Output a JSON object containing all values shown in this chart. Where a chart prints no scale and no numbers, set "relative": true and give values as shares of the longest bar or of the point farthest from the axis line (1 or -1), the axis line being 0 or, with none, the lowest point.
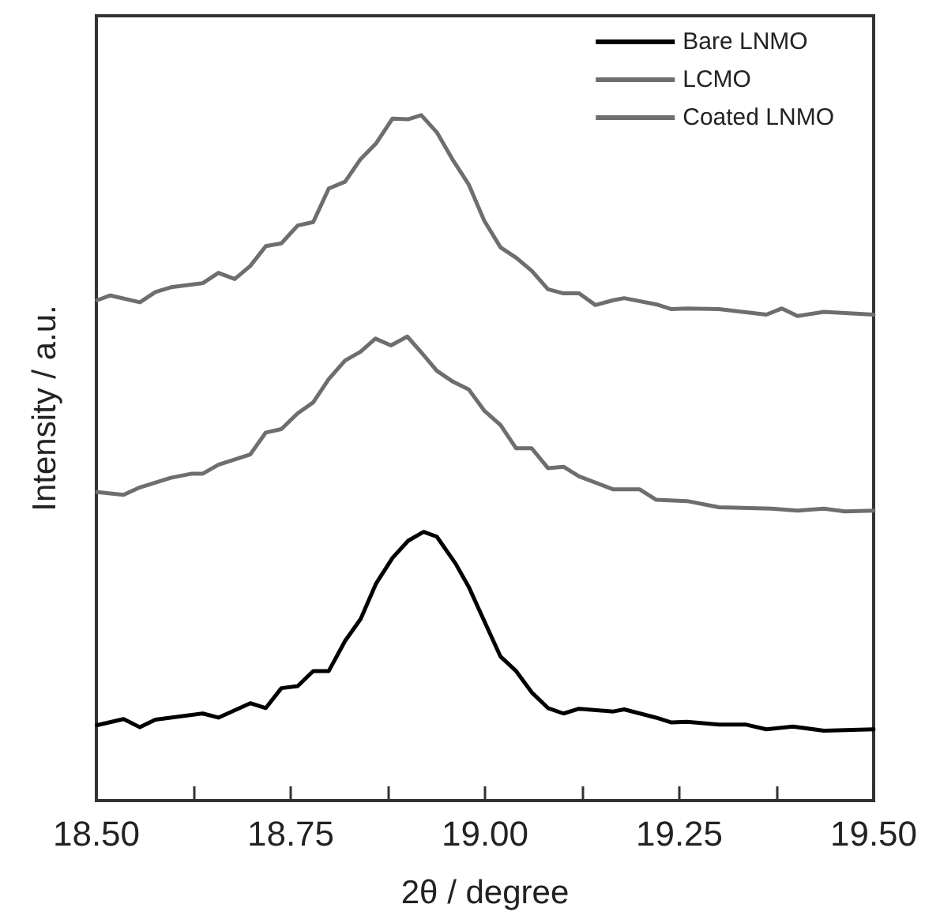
{
  "chart_data": {
    "type": "line",
    "relative": true,
    "xlabel": "2θ / degree",
    "ylabel": "Intensity / a.u.",
    "xlim": [
      18.5,
      19.5
    ],
    "xticks": [
      {
        "value": 18.5,
        "label": "18.50"
      },
      {
        "value": 18.625,
        "label": null
      },
      {
        "value": 18.75,
        "label": "18.75"
      },
      {
        "value": 18.875,
        "label": null
      },
      {
        "value": 19.0,
        "label": "19.00"
      },
      {
        "value": 19.125,
        "label": null
      },
      {
        "value": 19.25,
        "label": "19.25"
      },
      {
        "value": 19.375,
        "label": null
      },
      {
        "value": 19.5,
        "label": "19.50"
      }
    ],
    "tick_labels": "x",
    "grid": false,
    "legend": "top right",
    "marker": "none",
    "line_style": "solid",
    "series": [
      {
        "name": "Bare LNMO",
        "color": "#000000",
        "x": [
          18.501,
          18.535,
          18.556,
          18.576,
          18.637,
          18.657,
          18.698,
          18.718,
          18.738,
          18.759,
          18.779,
          18.799,
          18.82,
          18.84,
          18.86,
          18.881,
          18.901,
          18.921,
          18.938,
          18.962,
          18.979,
          18.999,
          19.02,
          19.04,
          19.06,
          19.081,
          19.101,
          19.121,
          19.165,
          19.179,
          19.22,
          19.24,
          19.26,
          19.301,
          19.335,
          19.362,
          19.396,
          19.436,
          19.5
        ],
        "values": [
          0.11,
          0.119,
          0.107,
          0.118,
          0.127,
          0.121,
          0.142,
          0.135,
          0.164,
          0.167,
          0.189,
          0.189,
          0.233,
          0.265,
          0.317,
          0.354,
          0.379,
          0.392,
          0.385,
          0.346,
          0.312,
          0.262,
          0.21,
          0.189,
          0.158,
          0.135,
          0.127,
          0.134,
          0.13,
          0.133,
          0.121,
          0.114,
          0.115,
          0.111,
          0.111,
          0.104,
          0.108,
          0.102,
          0.104
        ]
      },
      {
        "name": "LCMO",
        "color": "#6e6e6e",
        "x": [
          18.501,
          18.535,
          18.556,
          18.596,
          18.623,
          18.637,
          18.657,
          18.698,
          18.718,
          18.738,
          18.759,
          18.779,
          18.799,
          18.82,
          18.84,
          18.859,
          18.879,
          18.9,
          18.918,
          18.938,
          18.959,
          18.979,
          18.999,
          19.02,
          19.04,
          19.06,
          19.081,
          19.101,
          19.121,
          19.165,
          19.199,
          19.22,
          19.26,
          19.301,
          19.369,
          19.402,
          19.436,
          19.463,
          19.5
        ],
        "values": [
          0.45,
          0.446,
          0.457,
          0.471,
          0.477,
          0.477,
          0.49,
          0.505,
          0.537,
          0.542,
          0.565,
          0.581,
          0.615,
          0.642,
          0.655,
          0.674,
          0.664,
          0.677,
          0.654,
          0.627,
          0.611,
          0.6,
          0.569,
          0.548,
          0.514,
          0.514,
          0.485,
          0.487,
          0.473,
          0.454,
          0.454,
          0.439,
          0.437,
          0.428,
          0.426,
          0.423,
          0.426,
          0.422,
          0.423
        ]
      },
      {
        "name": "Coated LNMO",
        "color": "#6e6e6e",
        "x": [
          18.501,
          18.518,
          18.556,
          18.576,
          18.596,
          18.637,
          18.657,
          18.678,
          18.698,
          18.718,
          18.738,
          18.759,
          18.779,
          18.799,
          18.82,
          18.84,
          18.86,
          18.881,
          18.901,
          18.918,
          18.938,
          18.959,
          18.979,
          18.999,
          19.02,
          19.04,
          19.06,
          19.081,
          19.101,
          19.121,
          19.142,
          19.165,
          19.179,
          19.22,
          19.24,
          19.26,
          19.301,
          19.362,
          19.382,
          19.402,
          19.436,
          19.5
        ],
        "values": [
          0.73,
          0.737,
          0.727,
          0.742,
          0.749,
          0.755,
          0.77,
          0.761,
          0.78,
          0.809,
          0.813,
          0.839,
          0.844,
          0.893,
          0.903,
          0.936,
          0.959,
          0.995,
          0.994,
          1.0,
          0.975,
          0.934,
          0.899,
          0.846,
          0.807,
          0.792,
          0.773,
          0.746,
          0.74,
          0.74,
          0.723,
          0.73,
          0.733,
          0.724,
          0.717,
          0.718,
          0.717,
          0.709,
          0.718,
          0.707,
          0.713,
          0.709
        ]
      }
    ]
  }
}
